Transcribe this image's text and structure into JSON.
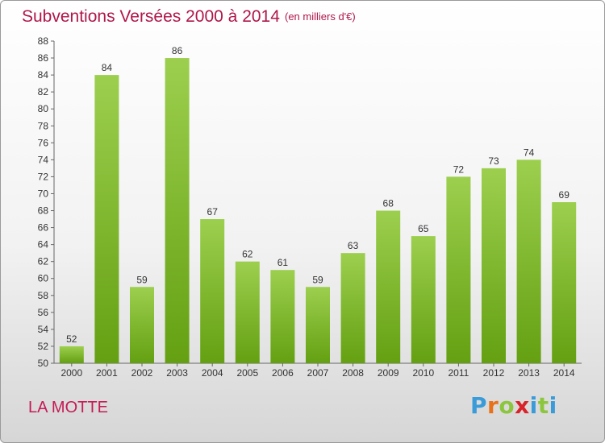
{
  "header": {
    "title": "Subventions Versées 2000 à 2014",
    "subtitle": "(en milliers d'€)"
  },
  "footer": {
    "commune": "LA MOTTE",
    "logo_letters": [
      "P",
      "r",
      "o",
      "x",
      "i",
      "t",
      "i"
    ],
    "logo_colors": [
      "#3a9bd9",
      "#e8711a",
      "#8cc63f",
      "#d8232a",
      "#3a9bd9",
      "#8cc63f",
      "#3a9bd9"
    ]
  },
  "colors": {
    "bar_top": "#9ccf4e",
    "bar_bottom": "#64a012",
    "title": "#b0174a",
    "commune": "#c41b56"
  },
  "chart_data": {
    "type": "bar",
    "title": "Subventions Versées 2000 à 2014",
    "subtitle": "(en milliers d'€)",
    "xlabel": "",
    "ylabel": "",
    "categories": [
      "2000",
      "2001",
      "2002",
      "2003",
      "2004",
      "2005",
      "2006",
      "2007",
      "2008",
      "2009",
      "2010",
      "2011",
      "2012",
      "2013",
      "2014"
    ],
    "values": [
      52,
      84,
      59,
      86,
      67,
      62,
      61,
      59,
      63,
      68,
      65,
      72,
      73,
      74,
      69
    ],
    "ylim": [
      50,
      88
    ],
    "yticks": [
      50,
      52,
      54,
      56,
      58,
      60,
      62,
      64,
      66,
      68,
      70,
      72,
      74,
      76,
      78,
      80,
      82,
      84,
      86,
      88
    ],
    "grid": false,
    "legend": "none"
  }
}
